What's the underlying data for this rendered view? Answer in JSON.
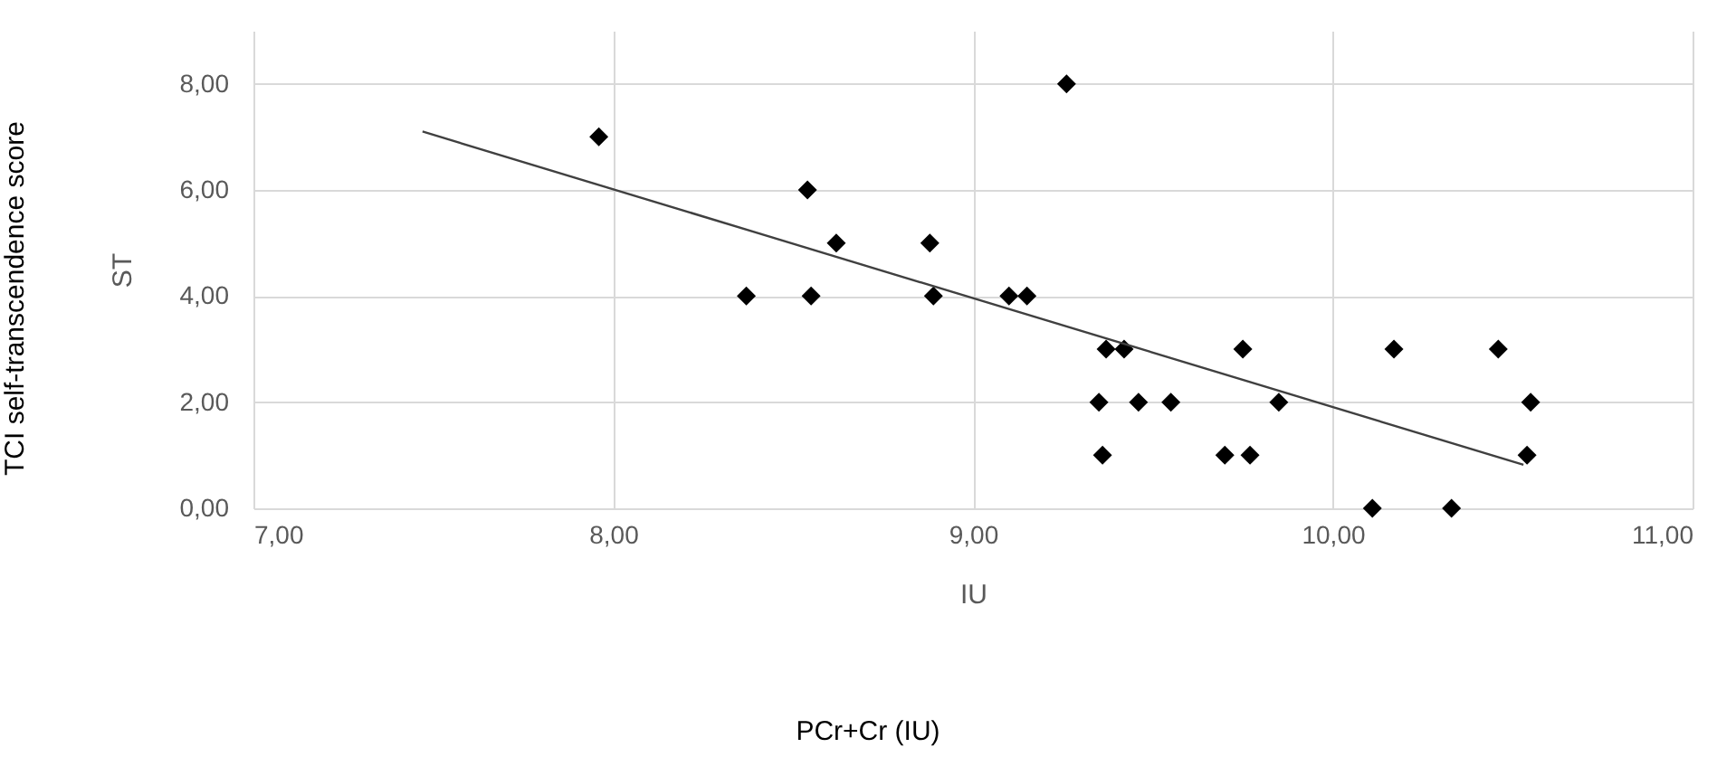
{
  "chart_data": {
    "type": "scatter",
    "xlabel": "IU",
    "ylabel": "ST",
    "annotations": [
      "TCI self-transcendence score",
      "PCr+Cr (IU)"
    ],
    "xlim": [
      7,
      11
    ],
    "ylim": [
      0,
      9
    ],
    "xticks": [
      {
        "value": 7,
        "label": "7,00"
      },
      {
        "value": 8,
        "label": "8,00"
      },
      {
        "value": 9,
        "label": "9,00"
      },
      {
        "value": 10,
        "label": "10,00"
      },
      {
        "value": 11,
        "label": "11,00"
      }
    ],
    "yticks": [
      {
        "value": 0,
        "label": "0,00"
      },
      {
        "value": 2,
        "label": "2,00"
      },
      {
        "value": 4,
        "label": "4,00"
      },
      {
        "value": 6,
        "label": "6,00"
      },
      {
        "value": 8,
        "label": "8,00"
      }
    ],
    "grid": true,
    "marker": "diamond",
    "series": [
      {
        "color": "#000000",
        "x": [
          7.96,
          8.37,
          8.54,
          8.55,
          8.62,
          8.88,
          8.89,
          9.26,
          9.1,
          9.15,
          9.37,
          9.42,
          9.35,
          9.46,
          9.55,
          9.36,
          9.75,
          9.85,
          9.7,
          9.77,
          10.11,
          10.33,
          10.17,
          10.46,
          10.55,
          10.54
        ],
        "values": [
          7,
          4,
          6,
          4,
          5,
          5,
          4,
          8,
          4,
          4,
          3,
          3,
          2,
          2,
          2,
          1,
          3,
          2,
          1,
          1,
          0,
          0,
          3,
          3,
          2,
          1
        ]
      },
      {
        "type": "line",
        "marker": "none",
        "color": "#404040",
        "x": [
          7.47,
          10.53
        ],
        "values": [
          7.1,
          0.82
        ]
      }
    ]
  }
}
